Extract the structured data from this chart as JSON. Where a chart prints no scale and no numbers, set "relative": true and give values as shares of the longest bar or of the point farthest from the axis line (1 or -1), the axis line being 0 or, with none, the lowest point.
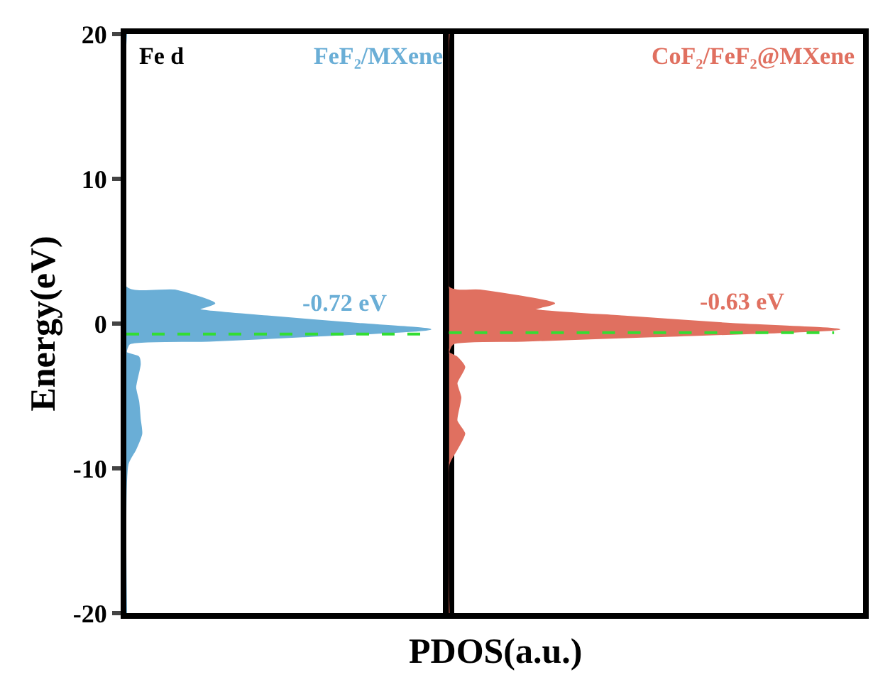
{
  "chart_data": [
    {
      "type": "area",
      "orientation": "horizontal",
      "relative": true,
      "ylabel": "Energy(eV)",
      "xlabel": "PDOS(a.u.)",
      "annotations": [
        "Fe d"
      ],
      "tick_labels": "y",
      "ylim": [
        -20,
        20
      ],
      "yticks": [
        -20,
        -10,
        0,
        10,
        20
      ],
      "x": [
        20,
        2.5,
        2.3,
        1.4,
        1.0,
        0.5,
        0.0,
        -0.4,
        -0.9,
        -1.2,
        -1.4,
        -2.0,
        -2.3,
        -2.8,
        -4.4,
        -5.4,
        -6.6,
        -7.6,
        -8.7,
        -9.7,
        -20
      ],
      "series": [
        {
          "name": "FeF₂/MXene",
          "color": "#6aaed6",
          "values": [
            0,
            0,
            0.16,
            0.29,
            0.24,
            0.47,
            0.76,
            1.0,
            0.58,
            0.27,
            0.01,
            0,
            0.04,
            0.045,
            0.03,
            0.04,
            0.045,
            0.05,
            0.03,
            0.005,
            0
          ]
        }
      ],
      "ref_lines": [
        {
          "axis": "y",
          "value": -0.72,
          "label": "-0.72 eV",
          "color": "#33dd33",
          "line_style": "dashed"
        }
      ]
    },
    {
      "type": "area",
      "orientation": "horizontal",
      "relative": true,
      "tick_labels": false,
      "ylim": [
        -20,
        20
      ],
      "x": [
        20,
        2.5,
        2.3,
        1.4,
        1.0,
        0.5,
        0.0,
        -0.4,
        -0.9,
        -1.2,
        -1.4,
        -2.0,
        -2.3,
        -3.0,
        -4.1,
        -5.1,
        -6.7,
        -7.6,
        -8.7,
        -9.7,
        -20
      ],
      "series": [
        {
          "name": "CoF₂/FeF₂@MXene",
          "color": "#e07060",
          "values": [
            0,
            0,
            0.08,
            0.27,
            0.22,
            0.45,
            0.72,
            1.0,
            0.52,
            0.19,
            0.01,
            0,
            0.02,
            0.04,
            0.02,
            0.03,
            0.02,
            0.04,
            0.02,
            0.0,
            0
          ]
        }
      ],
      "ref_lines": [
        {
          "axis": "y",
          "value": -0.63,
          "label": "-0.63 eV",
          "color": "#33dd33",
          "line_style": "dashed"
        }
      ]
    }
  ]
}
